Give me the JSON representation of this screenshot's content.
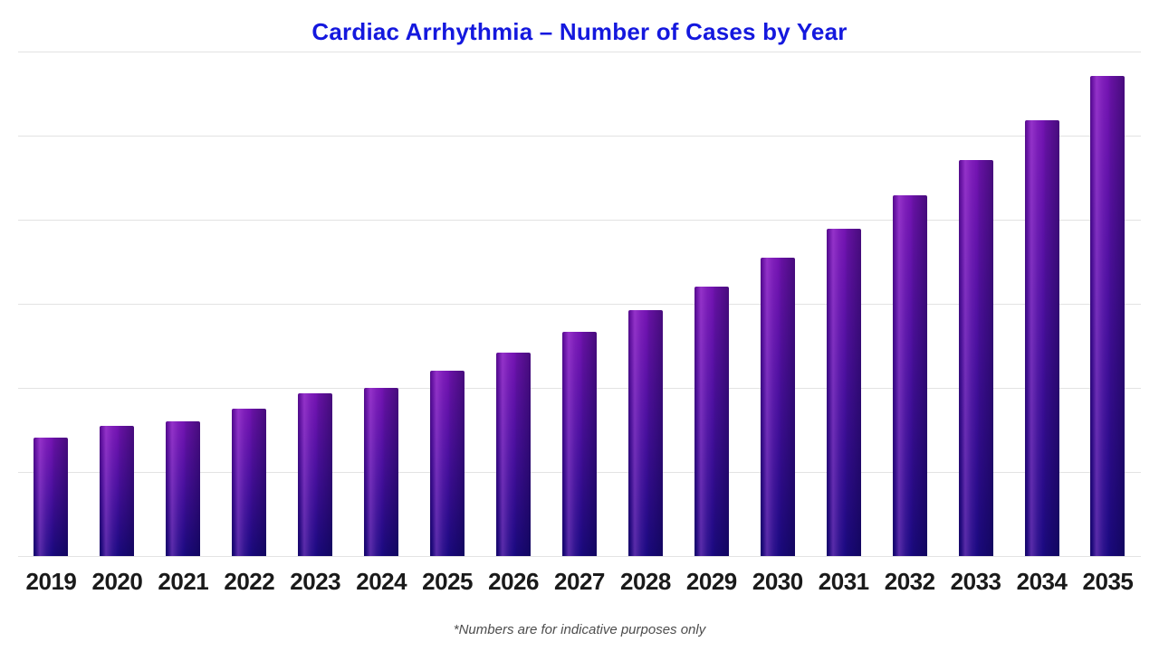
{
  "chart_data": {
    "type": "bar",
    "title": "Cardiac Arrhythmia – Number of Cases by Year",
    "xlabel": "",
    "ylabel": "",
    "categories": [
      "2019",
      "2020",
      "2021",
      "2022",
      "2023",
      "2024",
      "2025",
      "2026",
      "2027",
      "2028",
      "2029",
      "2030",
      "2031",
      "2032",
      "2033",
      "2034",
      "2035"
    ],
    "values": [
      141,
      155,
      160,
      175,
      194,
      200,
      220,
      242,
      267,
      292,
      320,
      355,
      389,
      429,
      471,
      518,
      571
    ],
    "ylim": [
      0,
      600
    ],
    "y_gridline_interval": 100,
    "grid": true,
    "legend_position": "none",
    "y_tick_labels_shown": false
  },
  "footnote": {
    "text": "*Numbers are for indicative purposes only"
  },
  "colors": {
    "background": "#ffffff",
    "title": "#1418de",
    "bar_gradient_top": "#7414b2",
    "bar_gradient_mid": "#4c10a0",
    "bar_gradient_bottom": "#1b0a82",
    "gridline": "#e3e3e3",
    "axis_label": "#1a1a1a",
    "footnote": "#4d4d4d"
  }
}
